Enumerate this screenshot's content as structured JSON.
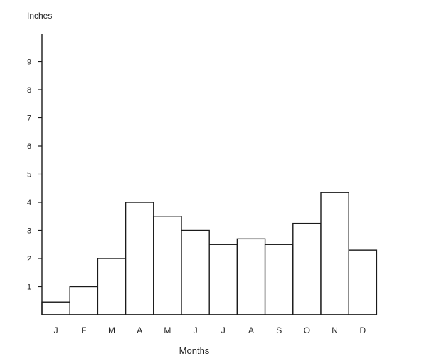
{
  "chart_data": {
    "type": "bar",
    "title": "",
    "ylabel": "Inches",
    "xlabel": "Months",
    "categories": [
      "J",
      "F",
      "M",
      "A",
      "M",
      "J",
      "J",
      "A",
      "S",
      "O",
      "N",
      "D"
    ],
    "values": [
      0.45,
      1.0,
      2.0,
      4.0,
      3.5,
      3.0,
      2.5,
      2.7,
      2.5,
      3.25,
      4.35,
      2.3
    ],
    "yticks": [
      1,
      2,
      3,
      4,
      5,
      6,
      7,
      8,
      9
    ],
    "ylim": [
      0,
      9.8
    ],
    "grid": false,
    "legend": "none",
    "bar_fill": "#ffffff",
    "bar_stroke": "#1a1a1a",
    "axis_color": "#1a1a1a"
  }
}
